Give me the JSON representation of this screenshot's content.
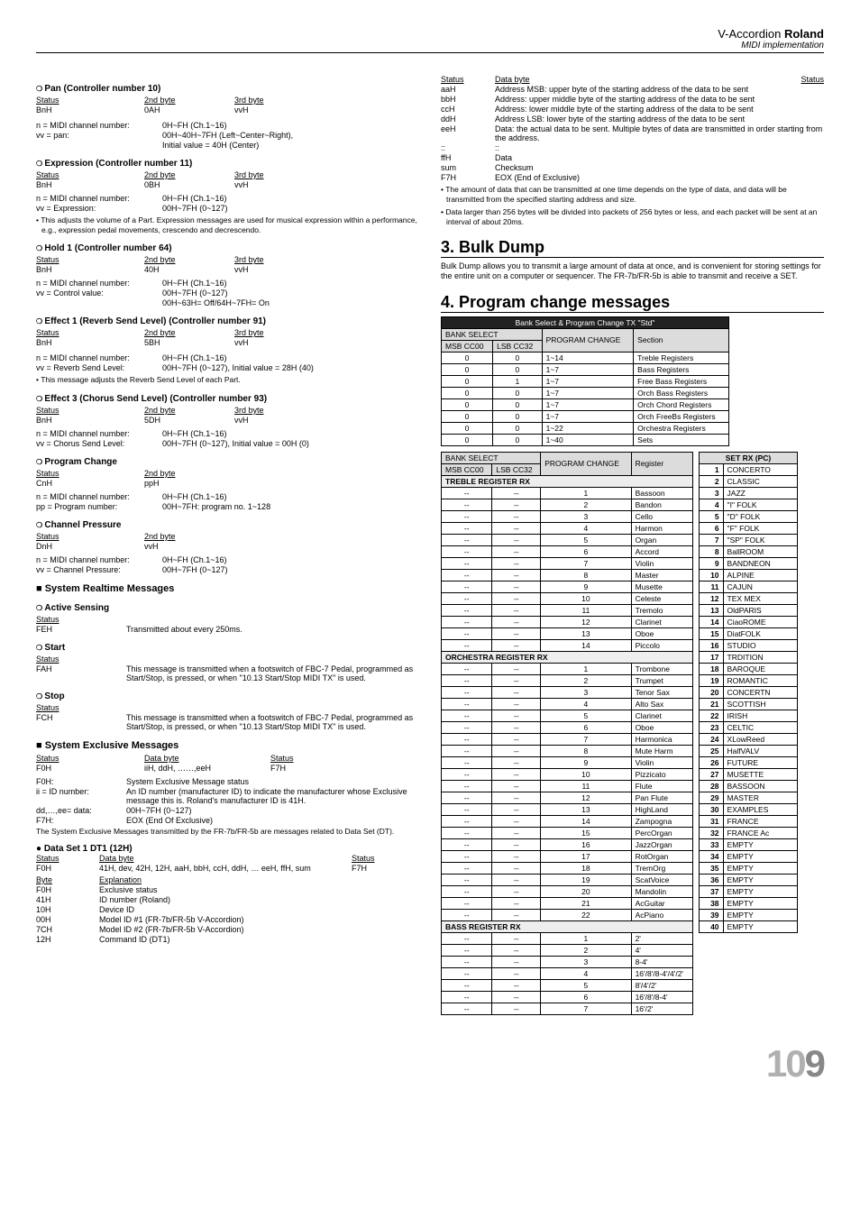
{
  "header": {
    "brand_left": "V-Accordion",
    "brand_bold": "Roland",
    "sub": "MIDI implementation"
  },
  "page_number": {
    "a": "10",
    "b": "9"
  },
  "pan": {
    "title": "Pan (Controller number 10)",
    "h1": "Status",
    "h2": "2nd byte",
    "h3": "3rd byte",
    "r1c1": "BnH",
    "r1c2": "0AH",
    "r1c3": "vvH",
    "kv1k": "n = MIDI channel number:",
    "kv1v": "0H~FH (Ch.1~16)",
    "kv2k": "vv = pan:",
    "kv2v": "00H~40H~7FH (Left~Center~Right),",
    "kv3v": "Initial value = 40H (Center)"
  },
  "expr": {
    "title": "Expression (Controller number 11)",
    "h1": "Status",
    "h2": "2nd byte",
    "h3": "3rd byte",
    "r1c1": "BnH",
    "r1c2": "0BH",
    "r1c3": "vvH",
    "kv1k": "n = MIDI channel number:",
    "kv1v": "0H~FH (Ch.1~16)",
    "kv2k": "vv = Expression:",
    "kv2v": "00H~7FH (0~127)",
    "note": "This adjusts the volume of a Part. Expression messages are used for musical expression within a performance, e.g., expression pedal movements, crescendo and decrescendo."
  },
  "hold1": {
    "title": "Hold 1 (Controller number 64)",
    "h1": "Status",
    "h2": "2nd byte",
    "h3": "3rd byte",
    "r1c1": "BnH",
    "r1c2": "40H",
    "r1c3": "vvH",
    "kv1k": "n = MIDI channel number:",
    "kv1v": "0H~FH (Ch.1~16)",
    "kv2k": "vv = Control value:",
    "kv2v": "00H~7FH (0~127)",
    "kv3v": "00H~63H= Off/64H~7FH= On"
  },
  "eff1": {
    "title": "Effect 1 (Reverb Send Level) (Controller number 91)",
    "h1": "Status",
    "h2": "2nd byte",
    "h3": "3rd byte",
    "r1c1": "BnH",
    "r1c2": "5BH",
    "r1c3": "vvH",
    "kv1k": "n = MIDI channel number:",
    "kv1v": "0H~FH (Ch.1~16)",
    "kv2k": "vv = Reverb Send Level:",
    "kv2v": "00H~7FH (0~127), Initial value = 28H (40)",
    "note": "This message adjusts the Reverb Send Level of each Part."
  },
  "eff3": {
    "title": "Effect 3 (Chorus Send Level) (Controller number 93)",
    "h1": "Status",
    "h2": "2nd byte",
    "h3": "3rd byte",
    "r1c1": "BnH",
    "r1c2": "5DH",
    "r1c3": "vvH",
    "kv1k": "n = MIDI channel number:",
    "kv1v": "0H~FH (Ch.1~16)",
    "kv2k": "vv = Chorus Send Level:",
    "kv2v": "00H~7FH (0~127), Initial value = 00H (0)"
  },
  "pch": {
    "title": "Program Change",
    "h1": "Status",
    "h2": "2nd byte",
    "r1c1": "CnH",
    "r1c2": "ppH",
    "kv1k": "n = MIDI channel number:",
    "kv1v": "0H~FH (Ch.1~16)",
    "kv2k": "pp = Program number:",
    "kv2v": "00H~7FH: program no. 1~128"
  },
  "chp": {
    "title": "Channel Pressure",
    "h1": "Status",
    "h2": "2nd byte",
    "r1c1": "DnH",
    "r1c2": "vvH",
    "kv1k": "n = MIDI channel number:",
    "kv1v": "0H~FH (Ch.1~16)",
    "kv2k": "vv = Channel Pressure:",
    "kv2v": "00H~7FH (0~127)"
  },
  "srm": {
    "title": "System Realtime Messages",
    "active_title": "Active Sensing",
    "active_status_h": "Status",
    "active_status": "FEH",
    "active_desc": "Transmitted about every 250ms.",
    "start_title": "Start",
    "start_status_h": "Status",
    "start_status": "FAH",
    "start_desc": "This message is transmitted when a footswitch of FBC-7 Pedal, programmed as Start/Stop, is pressed, or when \"10.13 Start/Stop MIDI TX\" is used.",
    "stop_title": "Stop",
    "stop_status_h": "Status",
    "stop_status": "FCH",
    "stop_desc": "This message is transmitted when a footswitch of FBC-7 Pedal, programmed as Start/Stop, is pressed, or when \"10.13 Start/Stop MIDI TX\" is used."
  },
  "sem": {
    "title": "System Exclusive Messages",
    "h1": "Status",
    "h2": "Data byte",
    "h3": "Status",
    "r1c1": "F0H",
    "r1c2": "iiH, ddH, ……,eeH",
    "r1c3": "F7H",
    "kv1k": "F0H:",
    "kv1v": "System Exclusive Message status",
    "kv2k": "ii = ID number:",
    "kv2v": "An ID number (manufacturer ID) to indicate the manufacturer whose Exclusive message this is. Roland's manufacturer ID is 41H.",
    "kv3k": "dd,…,ee= data:",
    "kv3v": "00H~7FH (0~127)",
    "kv4k": "F7H:",
    "kv4v": "EOX (End Of Exclusive)",
    "note": "The System Exclusive Messages transmitted by the FR-7b/FR-5b are messages related to Data Set (DT)."
  },
  "dt1": {
    "title": "Data Set 1 DT1 (12H)",
    "h1": "Status",
    "h2": "Data byte",
    "h3": "Status",
    "r1c1": "F0H",
    "r1c2": "41H, dev, 42H, 12H, aaH, bbH, ccH, ddH, … eeH, ffH, sum",
    "r1c3": "F7H",
    "eh1": "Byte",
    "eh2": "Explanation",
    "rows": [
      [
        "F0H",
        "Exclusive status"
      ],
      [
        "41H",
        "ID number (Roland)"
      ],
      [
        "10H",
        "Device ID"
      ],
      [
        "00H",
        "Model ID #1 (FR-7b/FR-5b V-Accordion)"
      ],
      [
        "7CH",
        "Model ID #2 (FR-7b/FR-5b V-Accordion)"
      ],
      [
        "12H",
        "Command ID (DT1)"
      ]
    ]
  },
  "right_top": {
    "h1": "Status",
    "h2": "Data byte",
    "h3": "Status",
    "rows": [
      [
        "aaH",
        "Address MSB: upper byte of the starting address of the data to be sent"
      ],
      [
        "bbH",
        "Address: upper middle byte of the starting address of the data to be sent"
      ],
      [
        "ccH",
        "Address: lower middle byte of the starting address of the data to be sent"
      ],
      [
        "ddH",
        "Address LSB: lower byte of the starting address of the data to be sent"
      ],
      [
        "eeH",
        "Data: the actual data to be sent. Multiple bytes of data are transmitted in order starting from the address."
      ],
      [
        "::",
        "::"
      ],
      [
        "ffH",
        "Data"
      ],
      [
        "sum",
        "Checksum"
      ],
      [
        "F7H",
        "EOX (End of Exclusive)"
      ]
    ],
    "note1": "The amount of data that can be transmitted at one time depends on the type of data, and data will be transmitted from the specified starting address and size.",
    "note2": "Data larger than 256 bytes will be divided into packets of 256 bytes or less, and each packet will be sent at an interval of about 20ms."
  },
  "bulk": {
    "title": "3. Bulk Dump",
    "para": "Bulk Dump allows you to transmit a large amount of data at once, and is convenient for storing settings for the entire unit on a computer or sequencer. The FR-7b/FR-5b is able to transmit and receive a SET."
  },
  "pcm": {
    "title": "4. Program change messages",
    "t1_cap": "Bank Select & Program Change TX \"Std\"",
    "t1_h": [
      "BANK SELECT",
      "PROGRAM CHANGE",
      "Section"
    ],
    "t1_sub": [
      "MSB CC00",
      "LSB CC32"
    ],
    "t1_rows": [
      [
        "0",
        "0",
        "1~14",
        "Treble Registers"
      ],
      [
        "0",
        "0",
        "1~7",
        "Bass Registers"
      ],
      [
        "0",
        "1",
        "1~7",
        "Free Bass Registers"
      ],
      [
        "0",
        "0",
        "1~7",
        "Orch Bass Registers"
      ],
      [
        "0",
        "0",
        "1~7",
        "Orch Chord Registers"
      ],
      [
        "0",
        "0",
        "1~7",
        "Orch FreeBs Registers"
      ],
      [
        "0",
        "0",
        "1~22",
        "Orchestra Registers"
      ],
      [
        "0",
        "0",
        "1~40",
        "Sets"
      ]
    ],
    "t2_h": [
      "BANK SELECT",
      "PROGRAM CHANGE",
      "Register"
    ],
    "t2_sub": [
      "MSB CC00",
      "LSB CC32"
    ],
    "treble_cap": "TREBLE REGISTER RX",
    "treble": [
      [
        "--",
        "--",
        "1",
        "Bassoon"
      ],
      [
        "--",
        "--",
        "2",
        "Bandon"
      ],
      [
        "--",
        "--",
        "3",
        "Cello"
      ],
      [
        "--",
        "--",
        "4",
        "Harmon"
      ],
      [
        "--",
        "--",
        "5",
        "Organ"
      ],
      [
        "--",
        "--",
        "6",
        "Accord"
      ],
      [
        "--",
        "--",
        "7",
        "Violin"
      ],
      [
        "--",
        "--",
        "8",
        "Master"
      ],
      [
        "--",
        "--",
        "9",
        "Musette"
      ],
      [
        "--",
        "--",
        "10",
        "Celeste"
      ],
      [
        "--",
        "--",
        "11",
        "Tremolo"
      ],
      [
        "--",
        "--",
        "12",
        "Clarinet"
      ],
      [
        "--",
        "--",
        "13",
        "Oboe"
      ],
      [
        "--",
        "--",
        "14",
        "Piccolo"
      ]
    ],
    "orch_cap": "ORCHESTRA REGISTER RX",
    "orch": [
      [
        "--",
        "--",
        "1",
        "Trombone"
      ],
      [
        "--",
        "--",
        "2",
        "Trumpet"
      ],
      [
        "--",
        "--",
        "3",
        "Tenor Sax"
      ],
      [
        "--",
        "--",
        "4",
        "Alto Sax"
      ],
      [
        "--",
        "--",
        "5",
        "Clarinet"
      ],
      [
        "--",
        "--",
        "6",
        "Oboe"
      ],
      [
        "--",
        "--",
        "7",
        "Harmonica"
      ],
      [
        "--",
        "--",
        "8",
        "Mute Harm"
      ],
      [
        "--",
        "--",
        "9",
        "Violin"
      ],
      [
        "--",
        "--",
        "10",
        "Pizzicato"
      ],
      [
        "--",
        "--",
        "11",
        "Flute"
      ],
      [
        "--",
        "--",
        "12",
        "Pan Flute"
      ],
      [
        "--",
        "--",
        "13",
        "HighLand"
      ],
      [
        "--",
        "--",
        "14",
        "Zampogna"
      ],
      [
        "--",
        "--",
        "15",
        "PercOrgan"
      ],
      [
        "--",
        "--",
        "16",
        "JazzOrgan"
      ],
      [
        "--",
        "--",
        "17",
        "RotOrgan"
      ],
      [
        "--",
        "--",
        "18",
        "TremOrg"
      ],
      [
        "--",
        "--",
        "19",
        "ScatVoice"
      ],
      [
        "--",
        "--",
        "20",
        "Mandolin"
      ],
      [
        "--",
        "--",
        "21",
        "AcGuitar"
      ],
      [
        "--",
        "--",
        "22",
        "AcPiano"
      ]
    ],
    "bass_cap": "BASS REGISTER RX",
    "bass": [
      [
        "--",
        "--",
        "1",
        "2'"
      ],
      [
        "--",
        "--",
        "2",
        "4'"
      ],
      [
        "--",
        "--",
        "3",
        "8-4'"
      ],
      [
        "--",
        "--",
        "4",
        "16'/8'/8-4'/4'/2'"
      ],
      [
        "--",
        "--",
        "5",
        "8'/4'/2'"
      ],
      [
        "--",
        "--",
        "6",
        "16'/8'/8-4'"
      ],
      [
        "--",
        "--",
        "7",
        "16'/2'"
      ]
    ],
    "setrx_h": "SET RX (PC)",
    "setrx": [
      [
        "1",
        "CONCERTO"
      ],
      [
        "2",
        "CLASSIC"
      ],
      [
        "3",
        "JAZZ"
      ],
      [
        "4",
        "\"I\" FOLK"
      ],
      [
        "5",
        "\"D\" FOLK"
      ],
      [
        "6",
        "\"F\" FOLK"
      ],
      [
        "7",
        "\"SP\" FOLK"
      ],
      [
        "8",
        "BallROOM"
      ],
      [
        "9",
        "BANDNEON"
      ],
      [
        "10",
        "ALPINE"
      ],
      [
        "11",
        "CAJUN"
      ],
      [
        "12",
        "TEX MEX"
      ],
      [
        "13",
        "OldPARIS"
      ],
      [
        "14",
        "CiaoROME"
      ],
      [
        "15",
        "DiatFOLK"
      ],
      [
        "16",
        "STUDIO"
      ],
      [
        "17",
        "TRDITION"
      ],
      [
        "18",
        "BAROQUE"
      ],
      [
        "19",
        "ROMANTIC"
      ],
      [
        "20",
        "CONCERTN"
      ],
      [
        "21",
        "SCOTTISH"
      ],
      [
        "22",
        "IRISH"
      ],
      [
        "23",
        "CELTIC"
      ],
      [
        "24",
        "XLowReed"
      ],
      [
        "25",
        "HalfVALV"
      ],
      [
        "26",
        "FUTURE"
      ],
      [
        "27",
        "MUSETTE"
      ],
      [
        "28",
        "BASSOON"
      ],
      [
        "29",
        "MASTER"
      ],
      [
        "30",
        "EXAMPLES"
      ],
      [
        "31",
        "FRANCE"
      ],
      [
        "32",
        "FRANCE Ac"
      ],
      [
        "33",
        "EMPTY"
      ],
      [
        "34",
        "EMPTY"
      ],
      [
        "35",
        "EMPTY"
      ],
      [
        "36",
        "EMPTY"
      ],
      [
        "37",
        "EMPTY"
      ],
      [
        "38",
        "EMPTY"
      ],
      [
        "39",
        "EMPTY"
      ],
      [
        "40",
        "EMPTY"
      ]
    ]
  }
}
